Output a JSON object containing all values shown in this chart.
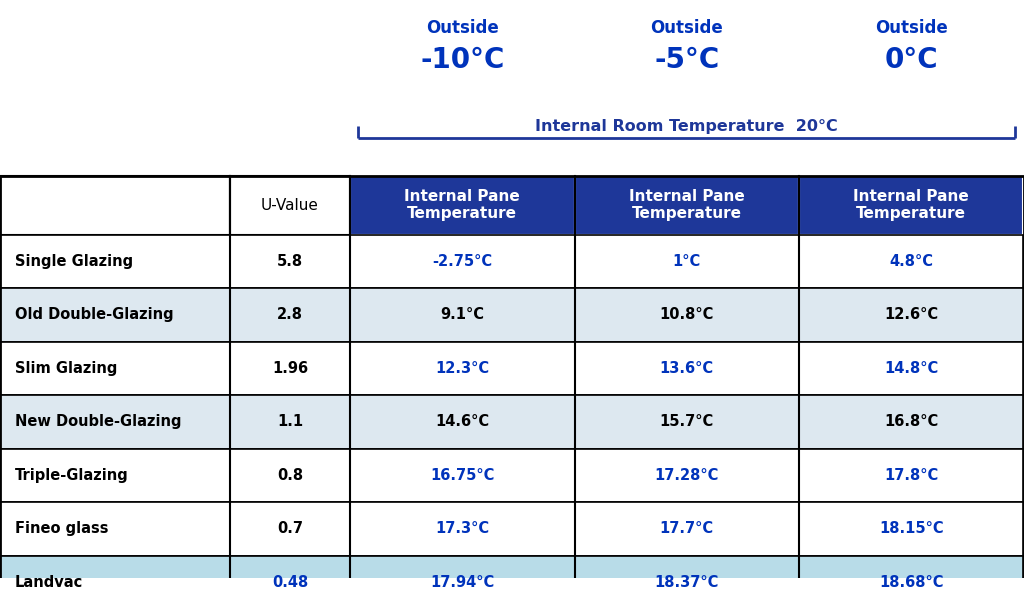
{
  "pane_header": "Internal Pane\nTemperature",
  "rows": [
    {
      "name": "Single Glazing",
      "u_value": "5.8",
      "temps": [
        "-2.75°C",
        "1°C",
        "4.8°C"
      ],
      "landvac": false,
      "fineo": false,
      "alt": false
    },
    {
      "name": "Old Double-Glazing",
      "u_value": "2.8",
      "temps": [
        "9.1°C",
        "10.8°C",
        "12.6°C"
      ],
      "landvac": false,
      "fineo": false,
      "alt": true
    },
    {
      "name": "Slim Glazing",
      "u_value": "1.96",
      "temps": [
        "12.3°C",
        "13.6°C",
        "14.8°C"
      ],
      "landvac": false,
      "fineo": false,
      "alt": false
    },
    {
      "name": "New Double-Glazing",
      "u_value": "1.1",
      "temps": [
        "14.6°C",
        "15.7°C",
        "16.8°C"
      ],
      "landvac": false,
      "fineo": false,
      "alt": true
    },
    {
      "name": "Triple-Glazing",
      "u_value": "0.8",
      "temps": [
        "16.75°C",
        "17.28°C",
        "17.8°C"
      ],
      "landvac": false,
      "fineo": false,
      "alt": false
    },
    {
      "name": "Fineo glass",
      "u_value": "0.7",
      "temps": [
        "17.3°C",
        "17.7°C",
        "18.15°C"
      ],
      "landvac": false,
      "fineo": true,
      "alt": false
    },
    {
      "name": "Landvac",
      "u_value": "0.48",
      "temps": [
        "17.94°C",
        "18.37°C",
        "18.68°C"
      ],
      "landvac": true,
      "fineo": false,
      "alt": false
    }
  ],
  "colors": {
    "dark_blue_header": "#1e3799",
    "blue_text": "#0033bb",
    "alt_bg": "#dde8f0",
    "landvac_bg": "#b8dce8",
    "white": "#ffffff",
    "black": "#000000",
    "outside_color": "#0033bb"
  },
  "figsize": [
    10.24,
    5.89
  ],
  "dpi": 100
}
